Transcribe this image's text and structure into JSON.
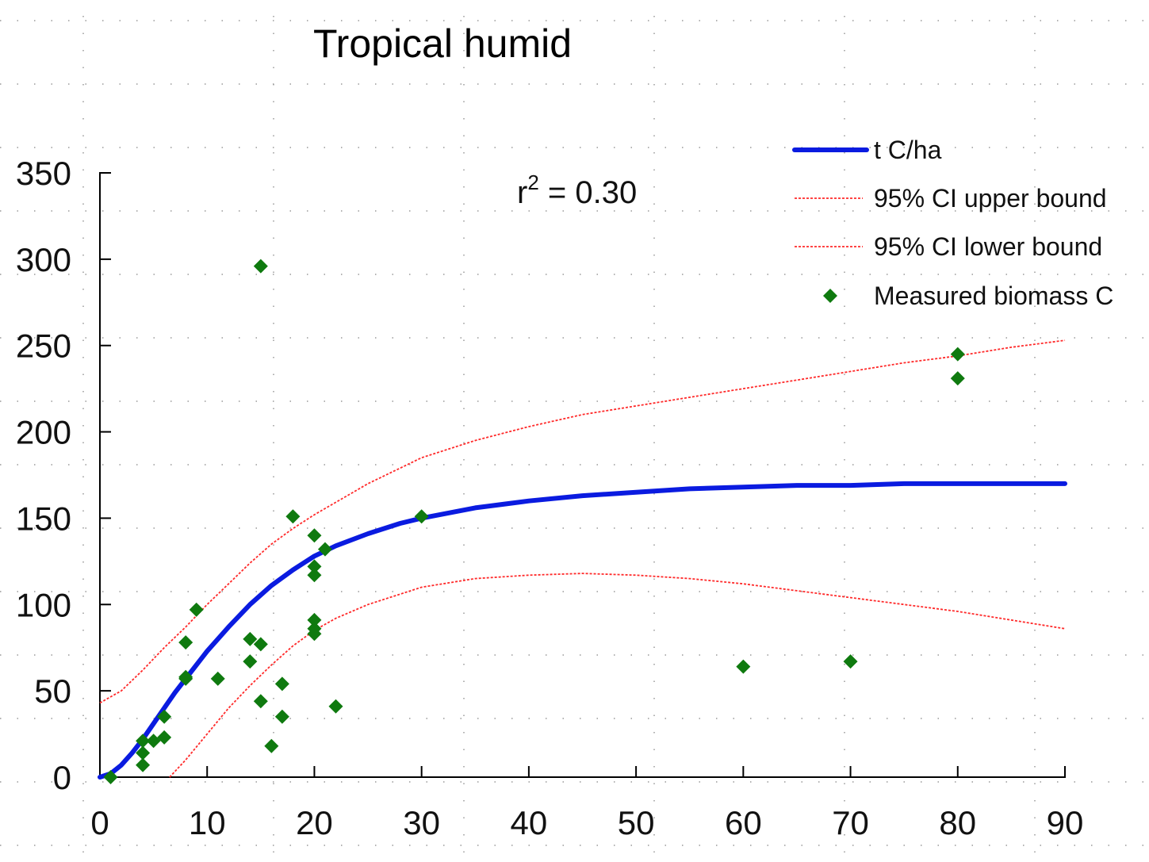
{
  "chart_data": {
    "type": "scatter",
    "title": "Tropical humid",
    "annotation": {
      "prefix": "r",
      "sup": "2",
      "suffix": " = 0.30"
    },
    "xlabel": "",
    "ylabel": "",
    "xlim": [
      0,
      90
    ],
    "ylim": [
      0,
      350
    ],
    "xticks": [
      0,
      10,
      20,
      30,
      40,
      50,
      60,
      70,
      80,
      90
    ],
    "yticks": [
      0,
      50,
      100,
      150,
      200,
      250,
      300,
      350
    ],
    "legend_position": "top-right",
    "colors": {
      "fit": "#0a1be0",
      "ci": "#ff2a2a",
      "points": "#0f7a0f",
      "grid": "#999999"
    },
    "series": [
      {
        "name": "t C/ha",
        "kind": "line",
        "x": [
          0,
          1,
          2,
          3,
          4,
          5,
          6,
          7,
          8,
          9,
          10,
          12,
          14,
          16,
          18,
          20,
          22,
          25,
          28,
          30,
          35,
          40,
          45,
          50,
          55,
          60,
          65,
          70,
          75,
          80,
          85,
          90
        ],
        "y": [
          0,
          2,
          7,
          14,
          22,
          31,
          40,
          49,
          57,
          65,
          73,
          87,
          100,
          111,
          120,
          128,
          134,
          141,
          147,
          150,
          156,
          160,
          163,
          165,
          167,
          168,
          169,
          169,
          170,
          170,
          170,
          170
        ]
      },
      {
        "name": "95% CI upper bound",
        "kind": "dotted",
        "x": [
          0,
          2,
          4,
          6,
          8,
          10,
          12,
          14,
          16,
          18,
          20,
          25,
          30,
          35,
          40,
          45,
          50,
          55,
          60,
          65,
          70,
          75,
          80,
          85,
          90
        ],
        "y": [
          43,
          50,
          62,
          75,
          87,
          100,
          112,
          124,
          135,
          144,
          152,
          170,
          185,
          195,
          203,
          210,
          215,
          220,
          225,
          230,
          235,
          240,
          244,
          249,
          253
        ]
      },
      {
        "name": "95% CI lower bound",
        "kind": "dotted",
        "x": [
          6.5,
          8,
          10,
          12,
          14,
          16,
          18,
          20,
          22,
          25,
          30,
          35,
          40,
          45,
          50,
          55,
          60,
          65,
          70,
          75,
          80,
          85,
          90
        ],
        "y": [
          0,
          10,
          25,
          40,
          53,
          65,
          76,
          85,
          92,
          100,
          110,
          115,
          117,
          118,
          117,
          115,
          112,
          108,
          104,
          100,
          96,
          91,
          86
        ]
      },
      {
        "name": "Measured biomass C",
        "kind": "points",
        "points": [
          [
            1,
            0
          ],
          [
            4,
            7
          ],
          [
            4,
            14
          ],
          [
            4,
            21
          ],
          [
            5,
            21
          ],
          [
            6,
            23
          ],
          [
            6,
            35
          ],
          [
            8,
            57
          ],
          [
            8,
            58
          ],
          [
            8,
            78
          ],
          [
            9,
            97
          ],
          [
            11,
            57
          ],
          [
            14,
            67
          ],
          [
            14,
            80
          ],
          [
            15,
            77
          ],
          [
            15,
            44
          ],
          [
            15,
            296
          ],
          [
            16,
            18
          ],
          [
            17,
            35
          ],
          [
            17,
            54
          ],
          [
            18,
            151
          ],
          [
            20,
            140
          ],
          [
            20,
            122
          ],
          [
            20,
            117
          ],
          [
            20,
            91
          ],
          [
            20,
            86
          ],
          [
            20,
            83
          ],
          [
            21,
            132
          ],
          [
            22,
            41
          ],
          [
            30,
            151
          ],
          [
            60,
            64
          ],
          [
            70,
            67
          ],
          [
            80,
            245
          ],
          [
            80,
            231
          ]
        ]
      }
    ],
    "legend": [
      "t C/ha",
      "95% CI upper bound",
      "95% CI lower bound",
      "Measured biomass C"
    ]
  }
}
